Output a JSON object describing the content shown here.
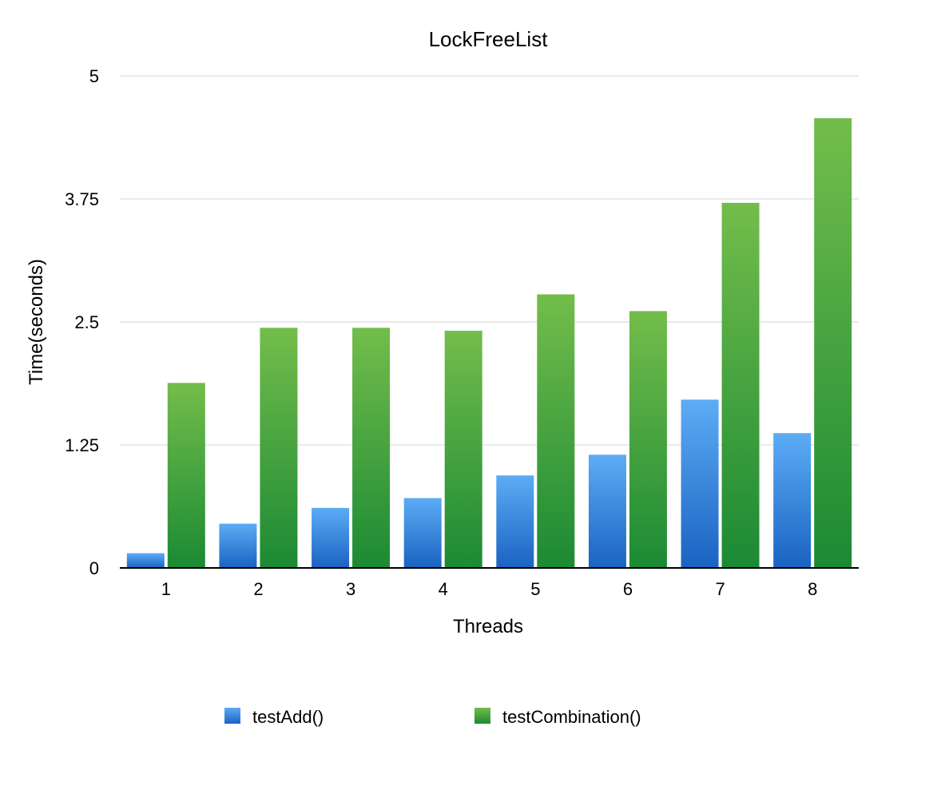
{
  "chart_data": {
    "type": "bar",
    "title": "LockFreeList",
    "xlabel": "Threads",
    "ylabel": "Time(seconds)",
    "categories": [
      "1",
      "2",
      "3",
      "4",
      "5",
      "6",
      "7",
      "8"
    ],
    "ylim": [
      0,
      5
    ],
    "yticks": [
      "0",
      "1.25",
      "2.5",
      "3.75",
      "5"
    ],
    "grid": true,
    "legend_position": "bottom",
    "series": [
      {
        "name": "testAdd()",
        "values": [
          0.15,
          0.45,
          0.61,
          0.71,
          0.94,
          1.15,
          1.71,
          1.37
        ],
        "color": "#3d8fe0",
        "color_light": "#5cacf5",
        "color_dark": "#1a63c2"
      },
      {
        "name": "testCombination()",
        "values": [
          1.88,
          2.44,
          2.44,
          2.41,
          2.78,
          2.61,
          3.71,
          4.57
        ],
        "color": "#3ea23f",
        "color_light": "#73bd4b",
        "color_dark": "#1b8a34"
      }
    ]
  }
}
